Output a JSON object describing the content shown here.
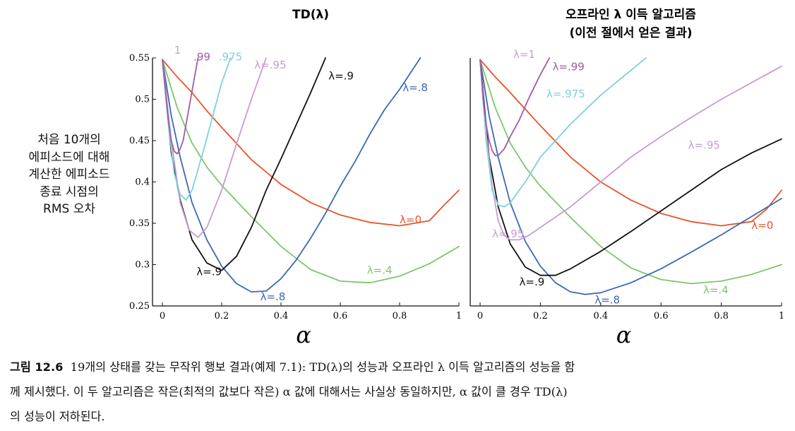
{
  "figure": {
    "y_label_lines": [
      "처음 10개의",
      "에피소드에 대해",
      "계산한 에피소드",
      "종료 시점의",
      "RMS 오차"
    ],
    "x_label": "α",
    "caption": {
      "number": "그림 12.6",
      "lines": [
        "19개의 상태를 갖는 무작위 행보 결과(예제 7.1): TD(λ)의 성능과 오프라인 λ 이득 알고리즘의 성능을 함",
        "께 제시했다. 이 두 알고리즘은 작은(최적의 값보다 작은) α 값에 대해서는 사실상 동일하지만, α 값이 클 경우 TD(λ)",
        "의 성능이 저하된다."
      ]
    }
  },
  "chart_data": [
    {
      "type": "line",
      "title": "TD(λ)",
      "xlabel": "α",
      "ylabel": "처음 10개의 에피소드에 대해 계산한 에피소드 종료 시점의 RMS 오차",
      "xlim": [
        0,
        1
      ],
      "ylim": [
        0.25,
        0.55
      ],
      "x_ticks": [
        "0",
        "0.2",
        "0.4",
        "0.6",
        "0.8",
        "1"
      ],
      "y_ticks": [
        "0.25",
        "0.3",
        "0.35",
        "0.4",
        "0.45",
        "0.5",
        "0.55"
      ],
      "grid": false,
      "series": [
        {
          "name": "λ=0",
          "color": "#e8532a",
          "label_at": [
            0.8,
            0.35
          ],
          "x": [
            0.0,
            0.05,
            0.1,
            0.15,
            0.2,
            0.3,
            0.4,
            0.5,
            0.6,
            0.7,
            0.8,
            0.9,
            0.95,
            1.0
          ],
          "y": [
            0.548,
            0.527,
            0.508,
            0.486,
            0.466,
            0.427,
            0.397,
            0.375,
            0.36,
            0.351,
            0.347,
            0.353,
            0.372,
            0.39
          ]
        },
        {
          "name": "λ=.4",
          "color": "#7ec66a",
          "label_at": [
            0.69,
            0.289
          ],
          "x": [
            0.0,
            0.05,
            0.1,
            0.15,
            0.2,
            0.3,
            0.4,
            0.5,
            0.6,
            0.7,
            0.8,
            0.9,
            1.0
          ],
          "y": [
            0.548,
            0.49,
            0.447,
            0.418,
            0.396,
            0.358,
            0.322,
            0.294,
            0.28,
            0.278,
            0.286,
            0.301,
            0.322
          ]
        },
        {
          "name": "λ=.8",
          "color": "#3b68b5",
          "label_at": [
            0.33,
            0.257
          ],
          "x": [
            0.0,
            0.03,
            0.06,
            0.1,
            0.15,
            0.2,
            0.25,
            0.3,
            0.35,
            0.4,
            0.45,
            0.5,
            0.55,
            0.6,
            0.65,
            0.7,
            0.75,
            0.8,
            0.87
          ],
          "y": [
            0.548,
            0.48,
            0.43,
            0.375,
            0.33,
            0.298,
            0.277,
            0.267,
            0.268,
            0.283,
            0.305,
            0.332,
            0.362,
            0.395,
            0.425,
            0.458,
            0.488,
            0.512,
            0.55
          ]
        },
        {
          "name": "λ=.8",
          "color": "#3b68b5",
          "label_at": [
            0.81,
            0.51
          ],
          "label_only": true
        },
        {
          "name": "λ=.9",
          "color": "#111111",
          "label_at": [
            0.115,
            0.287
          ],
          "x": [
            0.0,
            0.03,
            0.06,
            0.1,
            0.15,
            0.2,
            0.25,
            0.3,
            0.35,
            0.4,
            0.45,
            0.5,
            0.55
          ],
          "y": [
            0.548,
            0.435,
            0.378,
            0.33,
            0.302,
            0.293,
            0.31,
            0.345,
            0.39,
            0.428,
            0.468,
            0.508,
            0.55
          ]
        },
        {
          "name": "λ=.9",
          "color": "#111111",
          "label_at": [
            0.56,
            0.524
          ],
          "label_only": true
        },
        {
          "name": "λ=.95",
          "color": "#c89bd0",
          "label_at": [
            0.31,
            0.537
          ],
          "x": [
            0.0,
            0.03,
            0.06,
            0.09,
            0.12,
            0.15,
            0.2,
            0.25,
            0.3,
            0.35
          ],
          "y": [
            0.548,
            0.45,
            0.375,
            0.342,
            0.333,
            0.345,
            0.39,
            0.446,
            0.5,
            0.55
          ]
        },
        {
          "name": ".975",
          "color": "#7fd0de",
          "label_at": [
            0.19,
            0.547
          ],
          "x": [
            0.0,
            0.02,
            0.04,
            0.06,
            0.08,
            0.1,
            0.12,
            0.14,
            0.17,
            0.2,
            0.23
          ],
          "y": [
            0.548,
            0.47,
            0.41,
            0.385,
            0.378,
            0.39,
            0.415,
            0.44,
            0.48,
            0.52,
            0.55
          ]
        },
        {
          "name": ".99",
          "color": "#a05aa8",
          "label_at": [
            0.105,
            0.547
          ],
          "x": [
            0.0,
            0.02,
            0.03,
            0.04,
            0.05,
            0.06,
            0.07,
            0.08,
            0.1,
            0.12
          ],
          "y": [
            0.548,
            0.475,
            0.45,
            0.437,
            0.434,
            0.44,
            0.45,
            0.47,
            0.51,
            0.55
          ]
        },
        {
          "name": "1",
          "color": "#c89bd0",
          "label_at": [
            0.04,
            0.555
          ]
        }
      ]
    },
    {
      "type": "line",
      "title": "오프라인 λ 이득 알고리즘",
      "subtitle": "(이전 절에서 얻은 결과)",
      "xlabel": "α",
      "xlim": [
        0,
        1
      ],
      "ylim": [
        0.25,
        0.55
      ],
      "x_ticks": [
        "0",
        "0.2",
        "0.4",
        "0.6",
        "0.8",
        "1"
      ],
      "grid": false,
      "series": [
        {
          "name": "λ=0",
          "color": "#e8532a",
          "label_at": [
            0.9,
            0.343
          ],
          "x": [
            0.0,
            0.05,
            0.1,
            0.15,
            0.2,
            0.3,
            0.4,
            0.5,
            0.6,
            0.7,
            0.8,
            0.9,
            0.95,
            1.0
          ],
          "y": [
            0.548,
            0.527,
            0.508,
            0.488,
            0.468,
            0.43,
            0.4,
            0.378,
            0.362,
            0.352,
            0.347,
            0.352,
            0.367,
            0.39
          ]
        },
        {
          "name": "λ=.4",
          "color": "#7ec66a",
          "label_at": [
            0.74,
            0.265
          ],
          "x": [
            0.0,
            0.05,
            0.1,
            0.15,
            0.2,
            0.3,
            0.4,
            0.5,
            0.6,
            0.7,
            0.8,
            0.9,
            1.0
          ],
          "y": [
            0.548,
            0.49,
            0.447,
            0.418,
            0.395,
            0.357,
            0.322,
            0.296,
            0.282,
            0.277,
            0.28,
            0.288,
            0.3
          ]
        },
        {
          "name": "λ=.8",
          "color": "#3b68b5",
          "label_at": [
            0.38,
            0.253
          ],
          "x": [
            0.0,
            0.03,
            0.06,
            0.1,
            0.15,
            0.2,
            0.25,
            0.3,
            0.35,
            0.4,
            0.5,
            0.6,
            0.7,
            0.8,
            0.9,
            1.0
          ],
          "y": [
            0.548,
            0.48,
            0.43,
            0.375,
            0.328,
            0.298,
            0.278,
            0.267,
            0.264,
            0.266,
            0.278,
            0.295,
            0.315,
            0.336,
            0.358,
            0.38
          ]
        },
        {
          "name": "λ=.9",
          "color": "#111111",
          "label_at": [
            0.13,
            0.275
          ],
          "x": [
            0.0,
            0.03,
            0.06,
            0.1,
            0.15,
            0.2,
            0.25,
            0.3,
            0.4,
            0.5,
            0.6,
            0.7,
            0.8,
            0.9,
            1.0
          ],
          "y": [
            0.548,
            0.43,
            0.37,
            0.325,
            0.297,
            0.287,
            0.287,
            0.295,
            0.316,
            0.34,
            0.365,
            0.39,
            0.415,
            0.435,
            0.452
          ]
        },
        {
          "name": "λ=.95",
          "color": "#c89bd0",
          "label_at": [
            0.04,
            0.333
          ],
          "x": [
            0.0,
            0.02,
            0.04,
            0.06,
            0.08,
            0.1,
            0.13,
            0.16,
            0.2,
            0.3,
            0.4,
            0.5,
            0.6,
            0.7,
            0.8,
            0.9,
            1.0
          ],
          "y": [
            0.548,
            0.46,
            0.395,
            0.353,
            0.335,
            0.33,
            0.33,
            0.335,
            0.345,
            0.37,
            0.4,
            0.43,
            0.455,
            0.478,
            0.5,
            0.52,
            0.54
          ]
        },
        {
          "name": "λ=.975",
          "color": "#7fd0de",
          "label_at": [
            0.22,
            0.502
          ],
          "x": [
            0.0,
            0.02,
            0.04,
            0.06,
            0.08,
            0.1,
            0.15,
            0.2,
            0.3,
            0.4,
            0.5,
            0.55
          ],
          "y": [
            0.548,
            0.45,
            0.39,
            0.372,
            0.37,
            0.375,
            0.4,
            0.43,
            0.47,
            0.505,
            0.535,
            0.55
          ]
        },
        {
          "name": "λ=.95",
          "color": "#c89bd0",
          "label_at": [
            0.69,
            0.44
          ],
          "label_only": true
        },
        {
          "name": "λ=.99",
          "color": "#a05aa8",
          "label_at": [
            0.24,
            0.535
          ],
          "x": [
            0.0,
            0.01,
            0.02,
            0.03,
            0.04,
            0.05,
            0.06,
            0.08,
            0.1,
            0.13,
            0.16,
            0.2,
            0.23
          ],
          "y": [
            0.548,
            0.5,
            0.47,
            0.45,
            0.438,
            0.432,
            0.432,
            0.44,
            0.455,
            0.475,
            0.5,
            0.53,
            0.55
          ]
        },
        {
          "name": "λ=1",
          "color": "#c89bd0",
          "label_at": [
            0.11,
            0.55
          ]
        }
      ]
    }
  ]
}
